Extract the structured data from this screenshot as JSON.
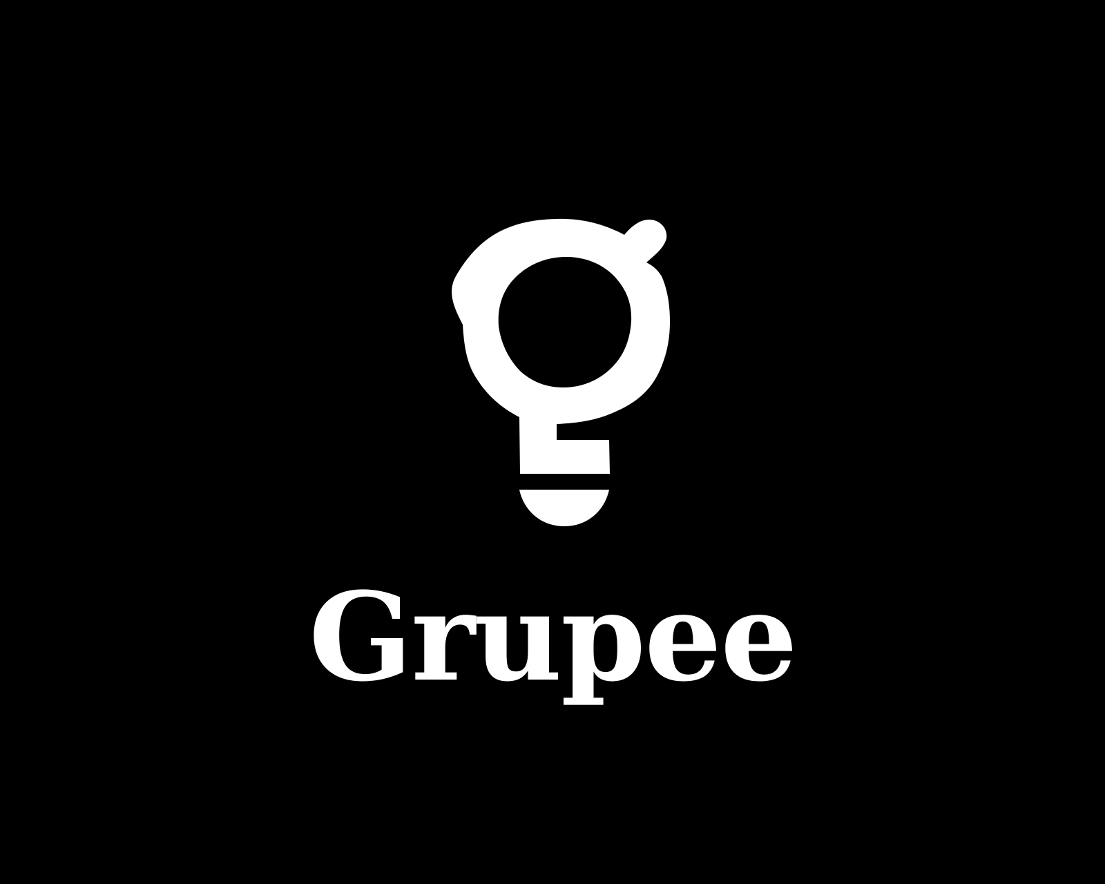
{
  "brand": {
    "name": "Grupee",
    "logo_icon": "lightbulb-g-icon",
    "background_color": "#000000",
    "foreground_color": "#ffffff"
  }
}
